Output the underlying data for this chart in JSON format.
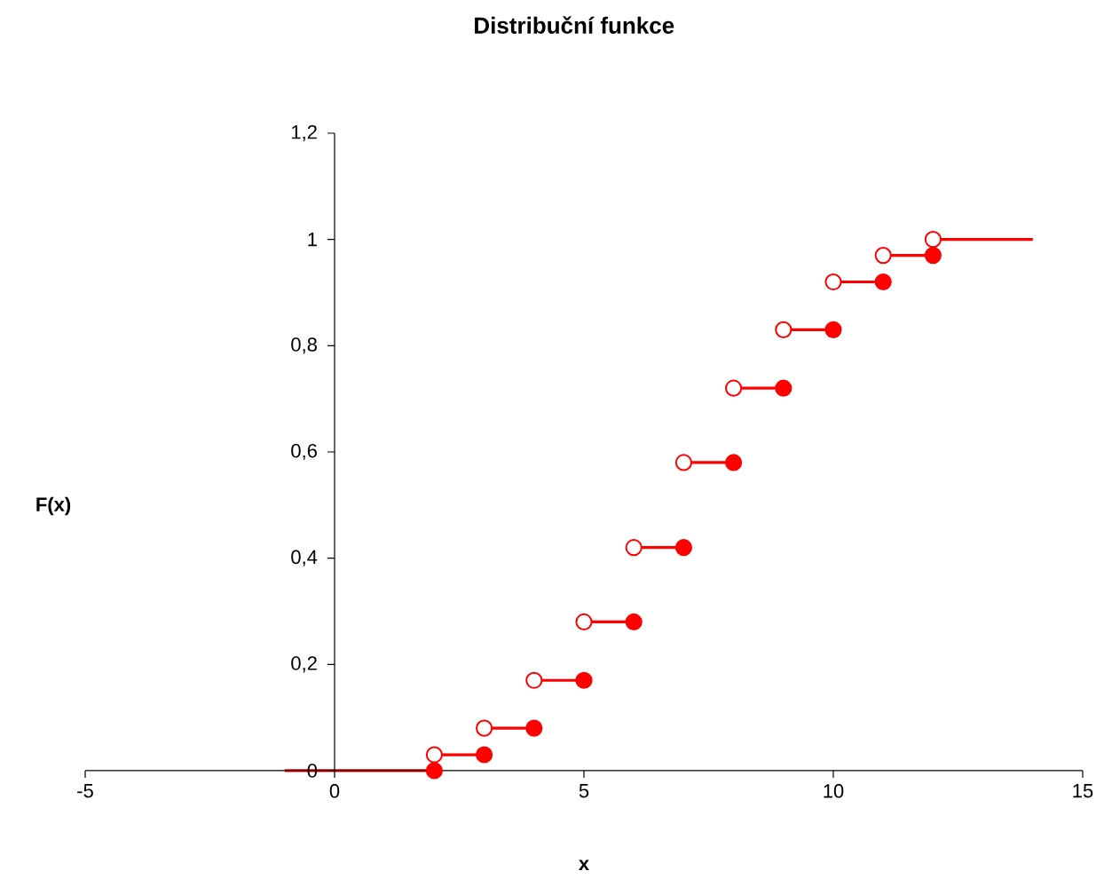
{
  "chart_data": {
    "type": "step",
    "title": "Distribuční funkce",
    "xlabel": "x",
    "ylabel": "F(x)",
    "xlim": [
      -5,
      15
    ],
    "xticks": [
      -5,
      0,
      5,
      10,
      15
    ],
    "ylim": [
      0,
      1.2
    ],
    "yticks": [
      0,
      {
        "value": 0.2,
        "label": "0,2"
      },
      {
        "value": 0.4,
        "label": "0,4"
      },
      {
        "value": 0.6,
        "label": "0,6"
      },
      {
        "value": 0.8,
        "label": "0,8"
      },
      1,
      {
        "value": 1.2,
        "label": "1,2"
      }
    ],
    "series": [
      {
        "color": "#ff0000",
        "marker": "none",
        "x": [
          -1,
          2,
          3,
          4,
          5,
          6,
          7,
          8,
          9,
          10,
          11,
          12,
          14
        ],
        "values": [
          0,
          0.03,
          0.08,
          0.17,
          0.28,
          0.42,
          0.58,
          0.72,
          0.83,
          0.92,
          0.97,
          1,
          1
        ]
      },
      {
        "type": "scatter",
        "color": "#ff0000",
        "marker": "circle",
        "x": [
          2,
          3,
          4,
          5,
          6,
          7,
          8,
          9,
          10,
          11,
          12
        ],
        "values": [
          0,
          0.03,
          0.08,
          0.17,
          0.28,
          0.42,
          0.58,
          0.72,
          0.83,
          0.92,
          0.97
        ]
      },
      {
        "type": "scatter",
        "color": "#ff0000",
        "marker": "open circle",
        "x": [
          2,
          3,
          4,
          5,
          6,
          7,
          8,
          9,
          10,
          11,
          12
        ],
        "values": [
          0.03,
          0.08,
          0.17,
          0.28,
          0.42,
          0.58,
          0.72,
          0.83,
          0.92,
          0.97,
          1
        ]
      }
    ]
  }
}
